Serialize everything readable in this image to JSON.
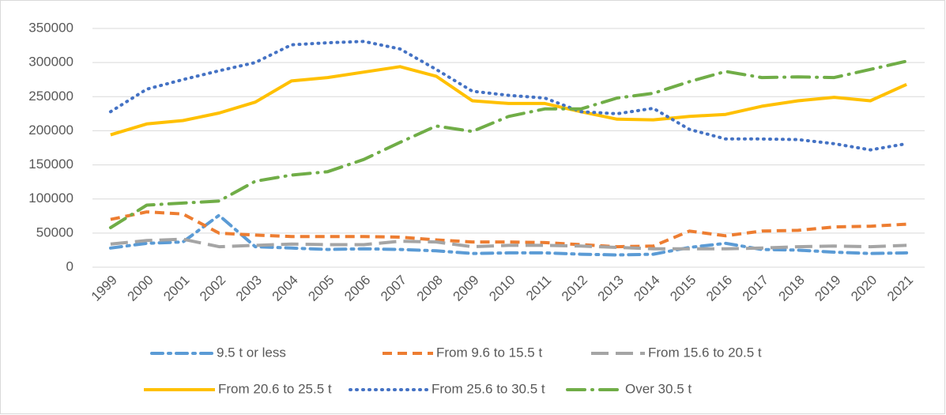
{
  "chart_data": {
    "type": "line",
    "categories": [
      "1999",
      "2000",
      "2001",
      "2002",
      "2003",
      "2004",
      "2005",
      "2006",
      "2007",
      "2008",
      "2009",
      "2010",
      "2011",
      "2012",
      "2013",
      "2014",
      "2015",
      "2016",
      "2017",
      "2018",
      "2019",
      "2020",
      "2021"
    ],
    "series": [
      {
        "name": "9.5 t or less",
        "color": "#5b9bd5",
        "dash": "dash-dot",
        "values": [
          28000,
          35000,
          37000,
          76000,
          30000,
          28000,
          26000,
          27000,
          26000,
          24000,
          20000,
          21000,
          21000,
          19000,
          18000,
          19000,
          29000,
          35000,
          26000,
          25000,
          22000,
          20000,
          21000
        ]
      },
      {
        "name": "From 9.6 to 15.5 t",
        "color": "#ed7d31",
        "dash": "dash",
        "values": [
          70000,
          81000,
          78000,
          50000,
          47000,
          45000,
          45000,
          45000,
          44000,
          40000,
          37000,
          37000,
          36000,
          33000,
          30000,
          31000,
          53000,
          46000,
          53000,
          54000,
          59000,
          60000,
          63000
        ]
      },
      {
        "name": "From 15.6 to 20.5 t",
        "color": "#a5a5a5",
        "dash": "long-dash",
        "values": [
          34000,
          39000,
          41000,
          30000,
          32000,
          34000,
          33000,
          33000,
          38000,
          37000,
          30000,
          32000,
          32000,
          31000,
          29000,
          27000,
          27000,
          27000,
          28000,
          30000,
          31000,
          30000,
          32000
        ]
      },
      {
        "name": "From 20.6 to 25.5 t",
        "color": "#ffc000",
        "dash": "solid",
        "values": [
          194000,
          210000,
          215000,
          226000,
          242000,
          273000,
          278000,
          286000,
          294000,
          280000,
          244000,
          240000,
          240000,
          228000,
          217000,
          216000,
          221000,
          224000,
          236000,
          244000,
          249000,
          244000,
          268000
        ]
      },
      {
        "name": "From 25.6 to 30.5 t",
        "color": "#4472c4",
        "dash": "dot",
        "values": [
          228000,
          261000,
          275000,
          288000,
          300000,
          326000,
          329000,
          331000,
          320000,
          290000,
          258000,
          252000,
          248000,
          228000,
          225000,
          233000,
          202000,
          188000,
          188000,
          187000,
          181000,
          172000,
          181000
        ]
      },
      {
        "name": "Over 30.5 t",
        "color": "#70ad47",
        "dash": "long-dash-dot",
        "values": [
          58000,
          91000,
          94000,
          97000,
          126000,
          135000,
          140000,
          158000,
          183000,
          207000,
          199000,
          221000,
          232000,
          232000,
          248000,
          255000,
          272000,
          287000,
          278000,
          279000,
          278000,
          290000,
          302000
        ]
      }
    ],
    "ylim": [
      0,
      350000
    ],
    "yticks": [
      0,
      50000,
      100000,
      150000,
      200000,
      250000,
      300000,
      350000
    ],
    "grid": true,
    "legend": "bottom"
  }
}
